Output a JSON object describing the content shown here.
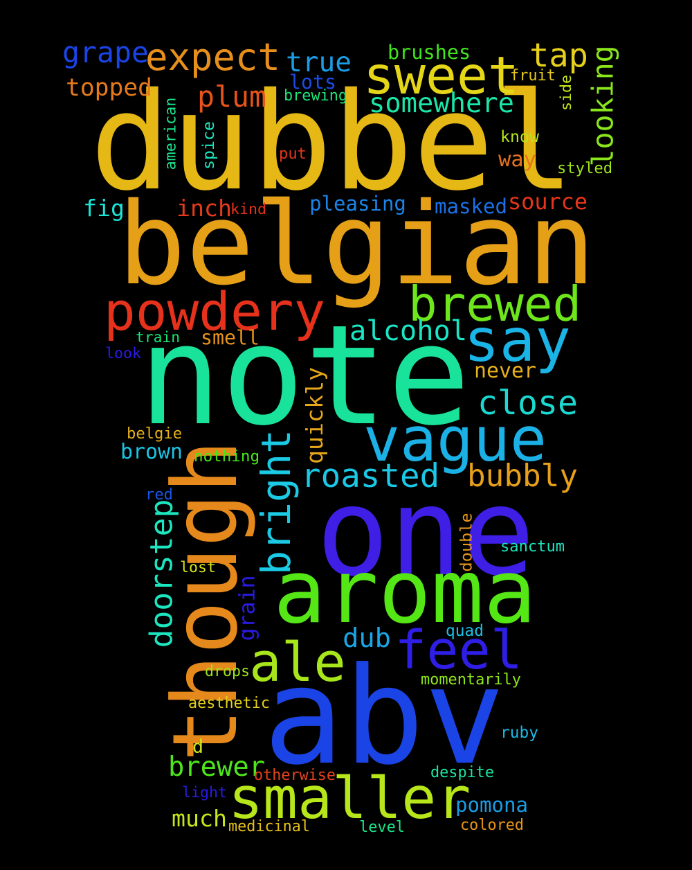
{
  "words": [
    {
      "text": "dubbel",
      "color": "#e6b815",
      "rotate": false
    },
    {
      "text": "belgian",
      "color": "#e6a018",
      "rotate": false
    },
    {
      "text": "note",
      "color": "#19e29a",
      "rotate": false
    },
    {
      "text": "one",
      "color": "#3f1ee6",
      "rotate": false
    },
    {
      "text": "abv",
      "color": "#1b44e6",
      "rotate": false
    },
    {
      "text": "aroma",
      "color": "#55e616",
      "rotate": false
    },
    {
      "text": "though",
      "color": "#e6891c",
      "rotate": true
    },
    {
      "text": "smaller",
      "color": "#b7e61b",
      "rotate": false
    },
    {
      "text": "vague",
      "color": "#1bb1e6",
      "rotate": false
    },
    {
      "text": "sweet",
      "color": "#e6d618",
      "rotate": false
    },
    {
      "text": "powdery",
      "color": "#e6321c",
      "rotate": false
    },
    {
      "text": "brewed",
      "color": "#6de61b",
      "rotate": false
    },
    {
      "text": "say",
      "color": "#1bb4e6",
      "rotate": false
    },
    {
      "text": "feel",
      "color": "#2e1ee6",
      "rotate": false
    },
    {
      "text": "ale",
      "color": "#a7e61b",
      "rotate": false
    },
    {
      "text": "expect",
      "color": "#e68f1c",
      "rotate": false
    },
    {
      "text": "bright",
      "color": "#1bcbe6",
      "rotate": true
    },
    {
      "text": "tap",
      "color": "#e6d01b",
      "rotate": false
    },
    {
      "text": "close",
      "color": "#1bd8d0",
      "rotate": false
    },
    {
      "text": "roasted",
      "color": "#1bc8e6",
      "rotate": false
    },
    {
      "text": "bubbly",
      "color": "#e6a01b",
      "rotate": false
    },
    {
      "text": "alcohol",
      "color": "#1be6c4",
      "rotate": false
    },
    {
      "text": "somewhere",
      "color": "#1be6a8",
      "rotate": false
    },
    {
      "text": "doorstep",
      "color": "#1be6c0",
      "rotate": true
    },
    {
      "text": "looking",
      "color": "#89e61b",
      "rotate": true
    },
    {
      "text": "grape",
      "color": "#1b44e6",
      "rotate": false
    },
    {
      "text": "true",
      "color": "#1b9de6",
      "rotate": false
    },
    {
      "text": "plum",
      "color": "#e6531b",
      "rotate": false
    },
    {
      "text": "topped",
      "color": "#e67a1b",
      "rotate": false
    },
    {
      "text": "brewer",
      "color": "#4ee61b",
      "rotate": false
    },
    {
      "text": "dub",
      "color": "#1ba6e6",
      "rotate": false
    },
    {
      "text": "pomona",
      "color": "#1b9de6",
      "rotate": false
    },
    {
      "text": "much",
      "color": "#c4e61b",
      "rotate": false
    },
    {
      "text": "quickly",
      "color": "#e6a71b",
      "rotate": true
    },
    {
      "text": "brown",
      "color": "#1bc4e6",
      "rotate": false
    },
    {
      "text": "fig",
      "color": "#1be6d8",
      "rotate": false
    },
    {
      "text": "inch",
      "color": "#e63a1b",
      "rotate": false
    },
    {
      "text": "pleasing",
      "color": "#1b84e6",
      "rotate": false
    },
    {
      "text": "masked",
      "color": "#1b70e6",
      "rotate": false
    },
    {
      "text": "source",
      "color": "#e6351b",
      "rotate": false
    },
    {
      "text": "smell",
      "color": "#e6931b",
      "rotate": false
    },
    {
      "text": "never",
      "color": "#e6b01b",
      "rotate": false
    },
    {
      "text": "grain",
      "color": "#2a1be6",
      "rotate": true
    },
    {
      "text": "lots",
      "color": "#1b4ce6",
      "rotate": false
    },
    {
      "text": "way",
      "color": "#e6731b",
      "rotate": false
    },
    {
      "text": "brushes",
      "color": "#41e61b",
      "rotate": false
    },
    {
      "text": "fruit",
      "color": "#e6c81b",
      "rotate": false
    },
    {
      "text": "side",
      "color": "#c8e61b",
      "rotate": true
    },
    {
      "text": "brewing",
      "color": "#1be67a",
      "rotate": false
    },
    {
      "text": "american",
      "color": "#1be68f",
      "rotate": true
    },
    {
      "text": "spice",
      "color": "#1be6bb",
      "rotate": true
    },
    {
      "text": "put",
      "color": "#e6361b",
      "rotate": false
    },
    {
      "text": "know",
      "color": "#b4e61b",
      "rotate": false
    },
    {
      "text": "styled",
      "color": "#a0e61b",
      "rotate": false
    },
    {
      "text": "kind",
      "color": "#e6311b",
      "rotate": false
    },
    {
      "text": "train",
      "color": "#1be673",
      "rotate": false
    },
    {
      "text": "look",
      "color": "#2a1be6",
      "rotate": false
    },
    {
      "text": "belgie",
      "color": "#e6b01b",
      "rotate": false
    },
    {
      "text": "nothing",
      "color": "#48e61b",
      "rotate": false
    },
    {
      "text": "red",
      "color": "#1b55e6",
      "rotate": false
    },
    {
      "text": "lost",
      "color": "#d8e61b",
      "rotate": false
    },
    {
      "text": "double",
      "color": "#e6971b",
      "rotate": true
    },
    {
      "text": "sanctum",
      "color": "#1be6c0",
      "rotate": false
    },
    {
      "text": "quad",
      "color": "#1bc0e6",
      "rotate": false
    },
    {
      "text": "drops",
      "color": "#9de61b",
      "rotate": false
    },
    {
      "text": "momentarily",
      "color": "#8fe61b",
      "rotate": false
    },
    {
      "text": "aesthetic",
      "color": "#e6d01b",
      "rotate": false
    },
    {
      "text": "ruby",
      "color": "#1bb8e6",
      "rotate": false
    },
    {
      "text": "d",
      "color": "#cce61b",
      "rotate": false
    },
    {
      "text": "otherwise",
      "color": "#e6441b",
      "rotate": false
    },
    {
      "text": "despite",
      "color": "#1be6a0",
      "rotate": false
    },
    {
      "text": "light",
      "color": "#2a1be6",
      "rotate": false
    },
    {
      "text": "medicinal",
      "color": "#e6c01b",
      "rotate": false
    },
    {
      "text": "level",
      "color": "#1be688",
      "rotate": false
    },
    {
      "text": "colored",
      "color": "#e6941b",
      "rotate": false
    }
  ]
}
